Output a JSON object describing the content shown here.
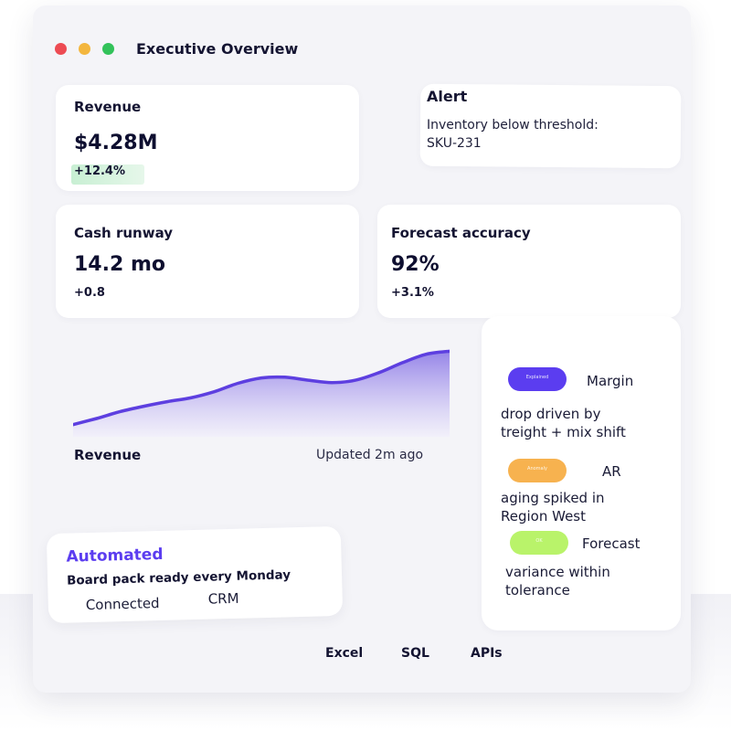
{
  "window": {
    "title": "Executive Overview"
  },
  "kpis": {
    "revenue": {
      "label": "Revenue",
      "value": "$4.28M",
      "delta": "+12.4%"
    },
    "cash": {
      "label": "Cash runway",
      "value": "14.2 mo",
      "delta": "+0.8"
    },
    "forecast": {
      "label": "Forecast accuracy",
      "value": "92%",
      "delta": "+3.1%"
    }
  },
  "alert": {
    "title": "Alert",
    "line1": "Inventory below threshold:",
    "line2": "SKU-231"
  },
  "chart": {
    "label": "Revenue",
    "updated": "Updated 2m ago"
  },
  "chart_data": {
    "type": "area",
    "x": [
      1,
      2,
      3,
      4,
      5,
      6,
      7,
      8,
      9,
      10,
      11,
      12,
      13,
      14,
      15,
      16,
      17
    ],
    "series": [
      {
        "values": [
          4,
          12,
          21,
          28,
          34,
          39,
          47,
          58,
          65,
          66,
          62,
          59,
          62,
          72,
          85,
          96,
          100
        ]
      }
    ],
    "ylim": [
      0,
      110
    ],
    "colors": {
      "line": "#5d3fe0",
      "fill_top": "#8b78e6",
      "fill_bottom": "#f0edfb"
    },
    "grid": false
  },
  "insights": [
    {
      "pill_text": "Explained",
      "pill_color": "#5b3df0",
      "head": "Margin",
      "body": [
        "drop driven by",
        "treight + mix shift"
      ]
    },
    {
      "pill_text": "Anomaly",
      "pill_color": "#f7b24f",
      "head": "AR",
      "body": [
        "aging spiked in",
        "Region West"
      ]
    },
    {
      "pill_text": "OK",
      "pill_color": "#b9f36a",
      "head": "Forecast",
      "body": [
        "variance within",
        "tolerance"
      ]
    }
  ],
  "automation": {
    "title": "Automated",
    "line": "Board pack ready every Monday",
    "connected_label": "Connected",
    "connected_app": "CRM"
  },
  "footer": {
    "links": [
      "Excel",
      "SQL",
      "APIs"
    ]
  }
}
